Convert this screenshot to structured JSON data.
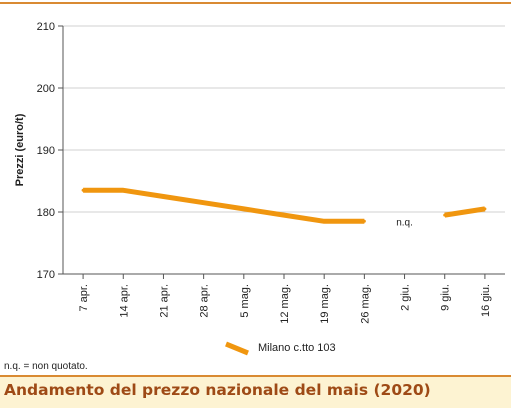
{
  "chart_data": {
    "type": "line",
    "ylabel": "Prezzi (euro/t)",
    "xlabel": "",
    "title": "",
    "ylim": [
      170,
      210
    ],
    "yticks": [
      170,
      180,
      190,
      200,
      210
    ],
    "categories": [
      "7 apr.",
      "14 apr.",
      "21 apr.",
      "28 apr.",
      "5 mag.",
      "12 mag.",
      "19 mag.",
      "26 mag.",
      "2 giu.",
      "9 giu.",
      "16 giu."
    ],
    "series": [
      {
        "name": "Milano  c.tto 103",
        "color": "#f0960f",
        "values": [
          183.5,
          183.5,
          182.5,
          181.5,
          180.5,
          179.5,
          178.5,
          178.5,
          null,
          179.5,
          180.5
        ]
      }
    ],
    "annotations": [
      {
        "text": "n.q.",
        "category": "2 giu.",
        "y": 178.5
      }
    ],
    "grid": true,
    "legend": "bottom"
  },
  "note": "n.q. = non quotato.",
  "footer_title": "Andamento del prezzo nazionale del mais (2020)"
}
